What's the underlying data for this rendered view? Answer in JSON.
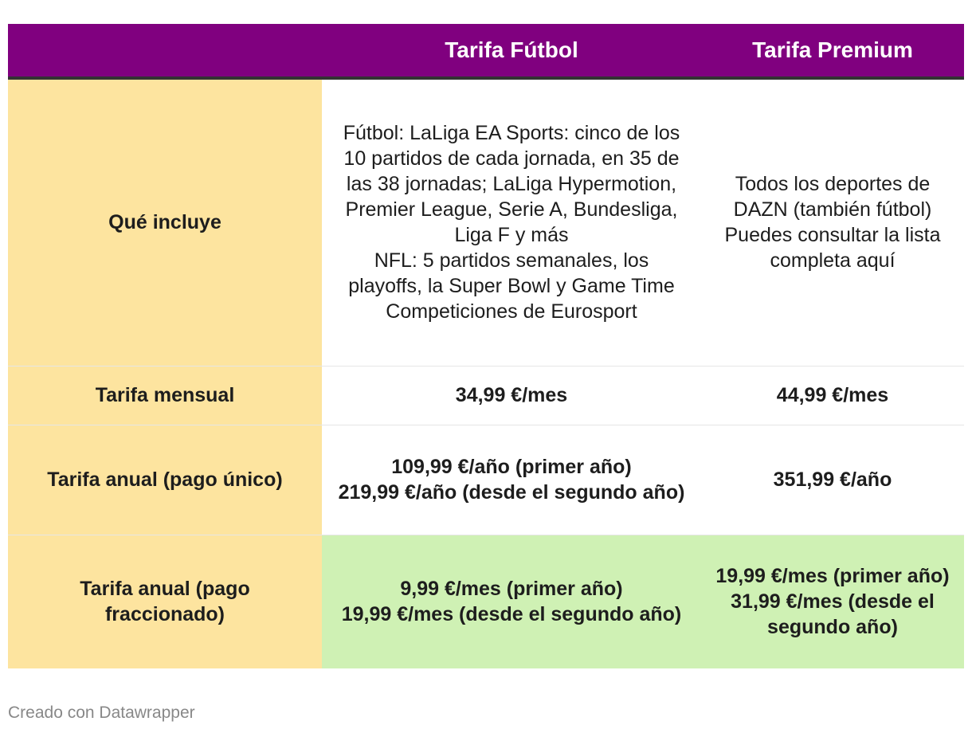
{
  "chart_data": {
    "type": "table",
    "columns": [
      "",
      "Tarifa Fútbol",
      "Tarifa Premium"
    ],
    "rows": [
      {
        "label": "Qué incluye",
        "futbol": [
          "Fútbol: LaLiga EA Sports: cinco de los 10 partidos de cada jornada, en 35 de las 38 jornadas; LaLiga Hypermotion, Premier League, Serie A, Bundesliga, Liga F y más",
          "NFL: 5 partidos semanales, los playoffs, la Super Bowl y Game Time",
          "Competiciones de Eurosport"
        ],
        "premium": [
          "Todos los deportes de DAZN (también fútbol)",
          "Puedes consultar la lista completa aquí"
        ]
      },
      {
        "label": "Tarifa mensual",
        "futbol": [
          "34,99 €/mes"
        ],
        "premium": [
          "44,99 €/mes"
        ]
      },
      {
        "label": "Tarifa anual (pago único)",
        "futbol": [
          "109,99 €/año (primer año)",
          "219,99 €/año (desde el segundo año)"
        ],
        "premium": [
          "351,99 €/año"
        ]
      },
      {
        "label": "Tarifa anual (pago fraccionado)",
        "futbol": [
          "9,99 €/mes (primer año)",
          "19,99 €/mes (desde el segundo año)"
        ],
        "premium": [
          "19,99 €/mes (primer año)",
          "31,99 €/mes (desde el segundo año)"
        ]
      }
    ]
  },
  "footer": "Creado con Datawrapper",
  "colors": {
    "header_bg": "#80007f",
    "label_bg": "#fde49f",
    "highlight_bg": "#cff1b4"
  }
}
